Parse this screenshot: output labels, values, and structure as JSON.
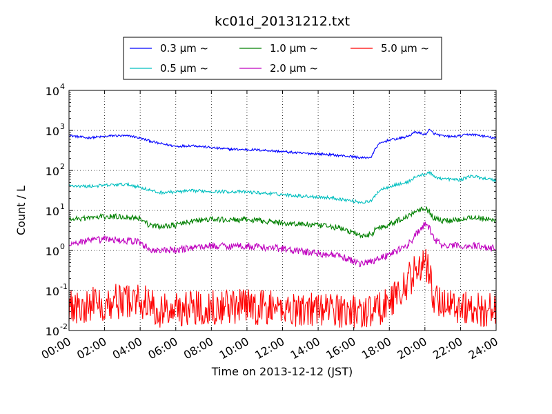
{
  "chart_data": {
    "type": "line",
    "title": "kc01d_20131212.txt",
    "xlabel": "Time on 2013-12-12 (JST)",
    "ylabel": "Count / L",
    "yscale": "log",
    "ylim": [
      0.01,
      10000
    ],
    "xlim": [
      "00:00",
      "24:00"
    ],
    "grid": true,
    "legend_position": "top-center",
    "legend_ncol": 3,
    "x_ticks": [
      "00:00",
      "02:00",
      "04:00",
      "06:00",
      "08:00",
      "10:00",
      "12:00",
      "14:00",
      "16:00",
      "18:00",
      "20:00",
      "22:00",
      "24:00"
    ],
    "y_ticks": [
      {
        "value": 0.01,
        "base": "10",
        "exp": "-2"
      },
      {
        "value": 0.1,
        "base": "10",
        "exp": "-1"
      },
      {
        "value": 1,
        "base": "10",
        "exp": "0"
      },
      {
        "value": 10,
        "base": "10",
        "exp": "1"
      },
      {
        "value": 100,
        "base": "10",
        "exp": "2"
      },
      {
        "value": 1000,
        "base": "10",
        "exp": "3"
      },
      {
        "value": 10000,
        "base": "10",
        "exp": "4"
      }
    ],
    "series": [
      {
        "name": "0.3 μm ~",
        "color": "#0000ff",
        "noise": 0.03,
        "points": [
          [
            "00:00",
            750
          ],
          [
            "01:00",
            650
          ],
          [
            "02:00",
            700
          ],
          [
            "02:30",
            740
          ],
          [
            "03:30",
            720
          ],
          [
            "04:00",
            640
          ],
          [
            "05:00",
            480
          ],
          [
            "06:00",
            400
          ],
          [
            "07:00",
            420
          ],
          [
            "08:00",
            370
          ],
          [
            "09:00",
            340
          ],
          [
            "10:00",
            330
          ],
          [
            "11:00",
            320
          ],
          [
            "12:00",
            295
          ],
          [
            "13:00",
            270
          ],
          [
            "14:00",
            260
          ],
          [
            "15:00",
            240
          ],
          [
            "16:00",
            220
          ],
          [
            "16:30",
            205
          ],
          [
            "17:00",
            215
          ],
          [
            "17:15",
            380
          ],
          [
            "17:30",
            480
          ],
          [
            "18:00",
            580
          ],
          [
            "18:30",
            620
          ],
          [
            "19:00",
            700
          ],
          [
            "19:30",
            920
          ],
          [
            "20:00",
            780
          ],
          [
            "20:15",
            1030
          ],
          [
            "20:30",
            840
          ],
          [
            "21:00",
            720
          ],
          [
            "21:30",
            700
          ],
          [
            "22:00",
            730
          ],
          [
            "22:30",
            800
          ],
          [
            "23:00",
            760
          ],
          [
            "24:00",
            630
          ]
        ]
      },
      {
        "name": "0.5 μm ~",
        "color": "#00bfbf",
        "noise": 0.04,
        "points": [
          [
            "00:00",
            42
          ],
          [
            "01:00",
            40
          ],
          [
            "02:00",
            42
          ],
          [
            "03:00",
            45
          ],
          [
            "03:30",
            43
          ],
          [
            "04:00",
            38
          ],
          [
            "05:00",
            28
          ],
          [
            "06:00",
            29
          ],
          [
            "07:00",
            31
          ],
          [
            "08:00",
            30
          ],
          [
            "10:00",
            29
          ],
          [
            "12:00",
            25
          ],
          [
            "13:00",
            23
          ],
          [
            "14:00",
            22
          ],
          [
            "15:00",
            20
          ],
          [
            "16:00",
            17
          ],
          [
            "16:30",
            16
          ],
          [
            "17:00",
            17
          ],
          [
            "17:15",
            26
          ],
          [
            "17:30",
            33
          ],
          [
            "18:00",
            40
          ],
          [
            "19:00",
            50
          ],
          [
            "19:30",
            70
          ],
          [
            "20:00",
            80
          ],
          [
            "20:15",
            90
          ],
          [
            "20:30",
            70
          ],
          [
            "21:00",
            62
          ],
          [
            "22:00",
            58
          ],
          [
            "22:30",
            72
          ],
          [
            "23:00",
            68
          ],
          [
            "24:00",
            56
          ]
        ]
      },
      {
        "name": "1.0 μm ~",
        "color": "#008000",
        "noise": 0.07,
        "points": [
          [
            "00:00",
            6
          ],
          [
            "01:00",
            6.5
          ],
          [
            "02:00",
            7
          ],
          [
            "03:00",
            7
          ],
          [
            "04:00",
            6.5
          ],
          [
            "04:30",
            4.3
          ],
          [
            "05:00",
            4
          ],
          [
            "06:00",
            4.3
          ],
          [
            "07:00",
            5.5
          ],
          [
            "08:00",
            6
          ],
          [
            "09:00",
            5.8
          ],
          [
            "10:00",
            5.8
          ],
          [
            "11:00",
            5.5
          ],
          [
            "12:00",
            4.8
          ],
          [
            "13:00",
            4.6
          ],
          [
            "14:00",
            4.2
          ],
          [
            "15:00",
            3.8
          ],
          [
            "16:00",
            2.8
          ],
          [
            "16:30",
            2.2
          ],
          [
            "17:00",
            2.6
          ],
          [
            "17:15",
            3.5
          ],
          [
            "18:00",
            4.5
          ],
          [
            "19:00",
            7
          ],
          [
            "19:30",
            10
          ],
          [
            "20:00",
            12
          ],
          [
            "20:15",
            9
          ],
          [
            "20:30",
            6.5
          ],
          [
            "21:00",
            5.5
          ],
          [
            "22:00",
            6
          ],
          [
            "22:30",
            6.8
          ],
          [
            "23:00",
            6.5
          ],
          [
            "24:00",
            5.5
          ]
        ]
      },
      {
        "name": "2.0 μm ~",
        "color": "#bf00bf",
        "noise": 0.09,
        "points": [
          [
            "00:00",
            1.5
          ],
          [
            "01:00",
            1.7
          ],
          [
            "02:00",
            1.9
          ],
          [
            "03:00",
            1.8
          ],
          [
            "04:00",
            1.6
          ],
          [
            "04:30",
            1.05
          ],
          [
            "05:00",
            1
          ],
          [
            "06:00",
            1
          ],
          [
            "07:00",
            1.2
          ],
          [
            "08:00",
            1.3
          ],
          [
            "09:00",
            1.3
          ],
          [
            "10:00",
            1.3
          ],
          [
            "11:00",
            1.2
          ],
          [
            "12:00",
            1.1
          ],
          [
            "13:00",
            0.95
          ],
          [
            "14:00",
            0.85
          ],
          [
            "15:00",
            0.75
          ],
          [
            "16:00",
            0.55
          ],
          [
            "16:30",
            0.45
          ],
          [
            "17:00",
            0.55
          ],
          [
            "18:00",
            0.8
          ],
          [
            "19:00",
            1.3
          ],
          [
            "19:30",
            2.5
          ],
          [
            "20:00",
            4.5
          ],
          [
            "20:15",
            3.5
          ],
          [
            "20:30",
            2
          ],
          [
            "21:00",
            1.3
          ],
          [
            "22:00",
            1.3
          ],
          [
            "23:00",
            1.3
          ],
          [
            "24:00",
            1.1
          ]
        ]
      },
      {
        "name": "5.0 μm ~",
        "color": "#ff0000",
        "noise": 0.45,
        "points": [
          [
            "00:00",
            0.04
          ],
          [
            "02:00",
            0.05
          ],
          [
            "04:00",
            0.06
          ],
          [
            "05:00",
            0.03
          ],
          [
            "06:00",
            0.035
          ],
          [
            "08:00",
            0.04
          ],
          [
            "10:00",
            0.04
          ],
          [
            "12:00",
            0.035
          ],
          [
            "14:00",
            0.035
          ],
          [
            "16:00",
            0.03
          ],
          [
            "17:00",
            0.03
          ],
          [
            "18:00",
            0.05
          ],
          [
            "19:00",
            0.15
          ],
          [
            "19:30",
            0.35
          ],
          [
            "20:00",
            0.5
          ],
          [
            "20:15",
            0.25
          ],
          [
            "20:30",
            0.06
          ],
          [
            "22:00",
            0.04
          ],
          [
            "24:00",
            0.03
          ]
        ]
      }
    ]
  }
}
